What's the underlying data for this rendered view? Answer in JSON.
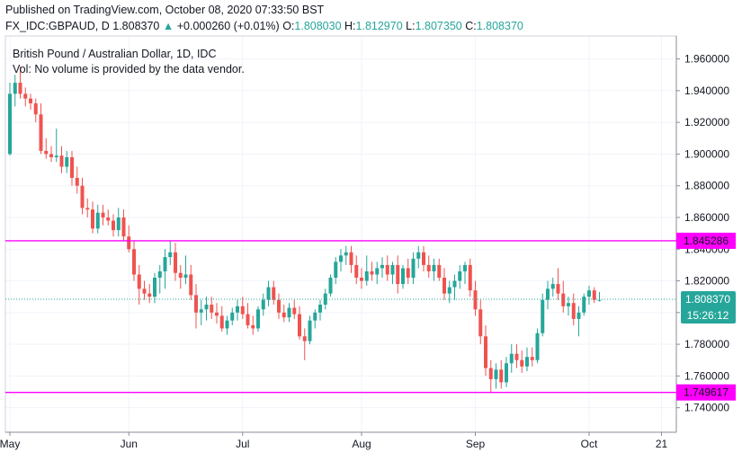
{
  "header": {
    "published": "Published on TradingView.com, October 08, 2020 07:33:50 BST",
    "symbol": "FX_IDC:GBPAUD, D",
    "last": "1.808370",
    "change_arrow": "▲",
    "change": "+0.000260 (+0.01%)",
    "o_label": "O:",
    "o_value": "1.808030",
    "h_label": "H:",
    "h_value": "1.812970",
    "l_label": "L:",
    "l_value": "1.807350",
    "c_label": "C:",
    "c_value": "1.808370"
  },
  "legend": {
    "title": "British Pound / Australian Dollar, 1D, IDC",
    "vol": "Vol: No volume is provided by the data vendor."
  },
  "colors": {
    "up": "#26a69a",
    "down": "#ef5350",
    "hline": "#ff00ff",
    "price_tag": "#26a69a"
  },
  "chart_data": {
    "type": "candlestick",
    "ylim": [
      1.7245,
      1.9745
    ],
    "y_ticks": [
      "1.740000",
      "1.760000",
      "1.780000",
      "1.800000",
      "1.820000",
      "1.840000",
      "1.860000",
      "1.880000",
      "1.900000",
      "1.920000",
      "1.940000",
      "1.960000"
    ],
    "x_ticks": [
      {
        "label": "May",
        "index": 0
      },
      {
        "label": "Jun",
        "index": 23
      },
      {
        "label": "Jul",
        "index": 45
      },
      {
        "label": "Aug",
        "index": 68
      },
      {
        "label": "Sep",
        "index": 90
      },
      {
        "label": "Oct",
        "index": 112
      },
      {
        "label": "21",
        "index": 126
      }
    ],
    "horizontal_lines": [
      {
        "value": 1.845286,
        "label": "1.845286"
      },
      {
        "value": 1.749617,
        "label": "1.749617"
      }
    ],
    "last_price": {
      "value": 1.80837,
      "label": "1.808370",
      "countdown": "15:26:12"
    },
    "candles": [
      {
        "o": 1.9,
        "h": 1.945,
        "l": 1.899,
        "c": 1.938
      },
      {
        "o": 1.938,
        "h": 1.95,
        "l": 1.93,
        "c": 1.945
      },
      {
        "o": 1.945,
        "h": 1.955,
        "l": 1.935,
        "c": 1.938
      },
      {
        "o": 1.938,
        "h": 1.942,
        "l": 1.93,
        "c": 1.935
      },
      {
        "o": 1.935,
        "h": 1.938,
        "l": 1.928,
        "c": 1.932
      },
      {
        "o": 1.932,
        "h": 1.935,
        "l": 1.92,
        "c": 1.925
      },
      {
        "o": 1.925,
        "h": 1.932,
        "l": 1.9,
        "c": 1.902
      },
      {
        "o": 1.902,
        "h": 1.91,
        "l": 1.897,
        "c": 1.9
      },
      {
        "o": 1.9,
        "h": 1.905,
        "l": 1.895,
        "c": 1.898
      },
      {
        "o": 1.898,
        "h": 1.916,
        "l": 1.895,
        "c": 1.899
      },
      {
        "o": 1.899,
        "h": 1.905,
        "l": 1.888,
        "c": 1.892
      },
      {
        "o": 1.892,
        "h": 1.902,
        "l": 1.888,
        "c": 1.898
      },
      {
        "o": 1.898,
        "h": 1.902,
        "l": 1.88,
        "c": 1.885
      },
      {
        "o": 1.885,
        "h": 1.892,
        "l": 1.875,
        "c": 1.88
      },
      {
        "o": 1.88,
        "h": 1.885,
        "l": 1.862,
        "c": 1.866
      },
      {
        "o": 1.866,
        "h": 1.872,
        "l": 1.86,
        "c": 1.865
      },
      {
        "o": 1.865,
        "h": 1.87,
        "l": 1.85,
        "c": 1.853
      },
      {
        "o": 1.853,
        "h": 1.868,
        "l": 1.85,
        "c": 1.863
      },
      {
        "o": 1.863,
        "h": 1.868,
        "l": 1.855,
        "c": 1.86
      },
      {
        "o": 1.86,
        "h": 1.865,
        "l": 1.855,
        "c": 1.858
      },
      {
        "o": 1.858,
        "h": 1.862,
        "l": 1.848,
        "c": 1.852
      },
      {
        "o": 1.852,
        "h": 1.866,
        "l": 1.848,
        "c": 1.86
      },
      {
        "o": 1.86,
        "h": 1.865,
        "l": 1.845,
        "c": 1.848
      },
      {
        "o": 1.848,
        "h": 1.855,
        "l": 1.838,
        "c": 1.84
      },
      {
        "o": 1.84,
        "h": 1.845,
        "l": 1.82,
        "c": 1.824
      },
      {
        "o": 1.824,
        "h": 1.83,
        "l": 1.805,
        "c": 1.815
      },
      {
        "o": 1.815,
        "h": 1.82,
        "l": 1.808,
        "c": 1.812
      },
      {
        "o": 1.812,
        "h": 1.818,
        "l": 1.806,
        "c": 1.81
      },
      {
        "o": 1.81,
        "h": 1.825,
        "l": 1.806,
        "c": 1.822
      },
      {
        "o": 1.822,
        "h": 1.83,
        "l": 1.812,
        "c": 1.826
      },
      {
        "o": 1.826,
        "h": 1.84,
        "l": 1.815,
        "c": 1.835
      },
      {
        "o": 1.835,
        "h": 1.845,
        "l": 1.83,
        "c": 1.838
      },
      {
        "o": 1.838,
        "h": 1.844,
        "l": 1.82,
        "c": 1.825
      },
      {
        "o": 1.825,
        "h": 1.83,
        "l": 1.815,
        "c": 1.822
      },
      {
        "o": 1.822,
        "h": 1.836,
        "l": 1.818,
        "c": 1.824
      },
      {
        "o": 1.824,
        "h": 1.83,
        "l": 1.808,
        "c": 1.811
      },
      {
        "o": 1.811,
        "h": 1.818,
        "l": 1.79,
        "c": 1.8
      },
      {
        "o": 1.8,
        "h": 1.808,
        "l": 1.792,
        "c": 1.802
      },
      {
        "o": 1.802,
        "h": 1.81,
        "l": 1.795,
        "c": 1.805
      },
      {
        "o": 1.805,
        "h": 1.81,
        "l": 1.796,
        "c": 1.8
      },
      {
        "o": 1.8,
        "h": 1.806,
        "l": 1.793,
        "c": 1.798
      },
      {
        "o": 1.798,
        "h": 1.804,
        "l": 1.788,
        "c": 1.79
      },
      {
        "o": 1.79,
        "h": 1.798,
        "l": 1.786,
        "c": 1.795
      },
      {
        "o": 1.795,
        "h": 1.803,
        "l": 1.792,
        "c": 1.8
      },
      {
        "o": 1.8,
        "h": 1.808,
        "l": 1.795,
        "c": 1.804
      },
      {
        "o": 1.804,
        "h": 1.81,
        "l": 1.796,
        "c": 1.799
      },
      {
        "o": 1.799,
        "h": 1.806,
        "l": 1.79,
        "c": 1.792
      },
      {
        "o": 1.792,
        "h": 1.798,
        "l": 1.786,
        "c": 1.79
      },
      {
        "o": 1.79,
        "h": 1.804,
        "l": 1.788,
        "c": 1.802
      },
      {
        "o": 1.802,
        "h": 1.812,
        "l": 1.798,
        "c": 1.808
      },
      {
        "o": 1.808,
        "h": 1.82,
        "l": 1.804,
        "c": 1.816
      },
      {
        "o": 1.816,
        "h": 1.82,
        "l": 1.805,
        "c": 1.808
      },
      {
        "o": 1.808,
        "h": 1.812,
        "l": 1.796,
        "c": 1.8
      },
      {
        "o": 1.8,
        "h": 1.805,
        "l": 1.794,
        "c": 1.797
      },
      {
        "o": 1.797,
        "h": 1.806,
        "l": 1.794,
        "c": 1.803
      },
      {
        "o": 1.803,
        "h": 1.808,
        "l": 1.796,
        "c": 1.799
      },
      {
        "o": 1.799,
        "h": 1.804,
        "l": 1.783,
        "c": 1.785
      },
      {
        "o": 1.785,
        "h": 1.79,
        "l": 1.77,
        "c": 1.782
      },
      {
        "o": 1.782,
        "h": 1.798,
        "l": 1.78,
        "c": 1.795
      },
      {
        "o": 1.795,
        "h": 1.802,
        "l": 1.79,
        "c": 1.8
      },
      {
        "o": 1.8,
        "h": 1.808,
        "l": 1.795,
        "c": 1.805
      },
      {
        "o": 1.805,
        "h": 1.815,
        "l": 1.802,
        "c": 1.812
      },
      {
        "o": 1.812,
        "h": 1.824,
        "l": 1.81,
        "c": 1.822
      },
      {
        "o": 1.822,
        "h": 1.835,
        "l": 1.818,
        "c": 1.832
      },
      {
        "o": 1.832,
        "h": 1.84,
        "l": 1.826,
        "c": 1.836
      },
      {
        "o": 1.836,
        "h": 1.842,
        "l": 1.83,
        "c": 1.838
      },
      {
        "o": 1.838,
        "h": 1.842,
        "l": 1.825,
        "c": 1.83
      },
      {
        "o": 1.83,
        "h": 1.836,
        "l": 1.818,
        "c": 1.822
      },
      {
        "o": 1.822,
        "h": 1.828,
        "l": 1.815,
        "c": 1.82
      },
      {
        "o": 1.82,
        "h": 1.836,
        "l": 1.817,
        "c": 1.826
      },
      {
        "o": 1.826,
        "h": 1.832,
        "l": 1.82,
        "c": 1.824
      },
      {
        "o": 1.824,
        "h": 1.832,
        "l": 1.818,
        "c": 1.828
      },
      {
        "o": 1.828,
        "h": 1.835,
        "l": 1.822,
        "c": 1.83
      },
      {
        "o": 1.83,
        "h": 1.836,
        "l": 1.82,
        "c": 1.824
      },
      {
        "o": 1.824,
        "h": 1.832,
        "l": 1.818,
        "c": 1.83
      },
      {
        "o": 1.83,
        "h": 1.836,
        "l": 1.812,
        "c": 1.818
      },
      {
        "o": 1.818,
        "h": 1.83,
        "l": 1.815,
        "c": 1.828
      },
      {
        "o": 1.828,
        "h": 1.834,
        "l": 1.818,
        "c": 1.822
      },
      {
        "o": 1.822,
        "h": 1.838,
        "l": 1.818,
        "c": 1.834
      },
      {
        "o": 1.834,
        "h": 1.842,
        "l": 1.828,
        "c": 1.838
      },
      {
        "o": 1.838,
        "h": 1.842,
        "l": 1.826,
        "c": 1.83
      },
      {
        "o": 1.83,
        "h": 1.836,
        "l": 1.822,
        "c": 1.826
      },
      {
        "o": 1.826,
        "h": 1.834,
        "l": 1.82,
        "c": 1.83
      },
      {
        "o": 1.83,
        "h": 1.834,
        "l": 1.82,
        "c": 1.822
      },
      {
        "o": 1.822,
        "h": 1.828,
        "l": 1.808,
        "c": 1.812
      },
      {
        "o": 1.812,
        "h": 1.82,
        "l": 1.806,
        "c": 1.816
      },
      {
        "o": 1.816,
        "h": 1.824,
        "l": 1.808,
        "c": 1.82
      },
      {
        "o": 1.82,
        "h": 1.83,
        "l": 1.815,
        "c": 1.826
      },
      {
        "o": 1.826,
        "h": 1.832,
        "l": 1.818,
        "c": 1.83
      },
      {
        "o": 1.83,
        "h": 1.834,
        "l": 1.81,
        "c": 1.814
      },
      {
        "o": 1.814,
        "h": 1.82,
        "l": 1.798,
        "c": 1.802
      },
      {
        "o": 1.802,
        "h": 1.808,
        "l": 1.78,
        "c": 1.785
      },
      {
        "o": 1.785,
        "h": 1.792,
        "l": 1.76,
        "c": 1.765
      },
      {
        "o": 1.765,
        "h": 1.77,
        "l": 1.75,
        "c": 1.758
      },
      {
        "o": 1.758,
        "h": 1.768,
        "l": 1.752,
        "c": 1.764
      },
      {
        "o": 1.764,
        "h": 1.77,
        "l": 1.752,
        "c": 1.756
      },
      {
        "o": 1.756,
        "h": 1.772,
        "l": 1.753,
        "c": 1.768
      },
      {
        "o": 1.768,
        "h": 1.78,
        "l": 1.762,
        "c": 1.774
      },
      {
        "o": 1.774,
        "h": 1.78,
        "l": 1.765,
        "c": 1.77
      },
      {
        "o": 1.77,
        "h": 1.776,
        "l": 1.762,
        "c": 1.766
      },
      {
        "o": 1.766,
        "h": 1.778,
        "l": 1.763,
        "c": 1.772
      },
      {
        "o": 1.772,
        "h": 1.778,
        "l": 1.766,
        "c": 1.77
      },
      {
        "o": 1.77,
        "h": 1.79,
        "l": 1.768,
        "c": 1.787
      },
      {
        "o": 1.787,
        "h": 1.812,
        "l": 1.785,
        "c": 1.808
      },
      {
        "o": 1.808,
        "h": 1.82,
        "l": 1.802,
        "c": 1.815
      },
      {
        "o": 1.815,
        "h": 1.822,
        "l": 1.81,
        "c": 1.818
      },
      {
        "o": 1.818,
        "h": 1.828,
        "l": 1.808,
        "c": 1.812
      },
      {
        "o": 1.812,
        "h": 1.82,
        "l": 1.8,
        "c": 1.804
      },
      {
        "o": 1.804,
        "h": 1.81,
        "l": 1.798,
        "c": 1.806
      },
      {
        "o": 1.806,
        "h": 1.812,
        "l": 1.792,
        "c": 1.796
      },
      {
        "o": 1.796,
        "h": 1.804,
        "l": 1.785,
        "c": 1.8
      },
      {
        "o": 1.8,
        "h": 1.812,
        "l": 1.798,
        "c": 1.81
      },
      {
        "o": 1.81,
        "h": 1.817,
        "l": 1.805,
        "c": 1.814
      },
      {
        "o": 1.814,
        "h": 1.816,
        "l": 1.806,
        "c": 1.808
      },
      {
        "o": 1.808,
        "h": 1.813,
        "l": 1.807,
        "c": 1.808
      }
    ]
  }
}
